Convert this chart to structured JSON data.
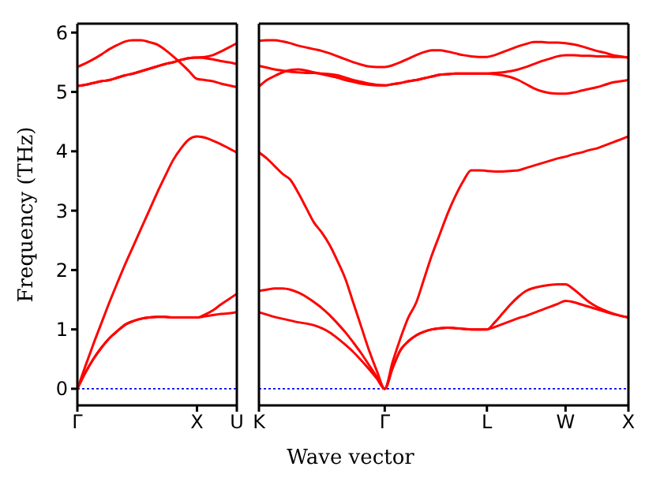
{
  "chart_data": [
    {
      "type": "line",
      "ylabel": "Frequency (THz)",
      "categories": [
        "Γ",
        null,
        null,
        null,
        null,
        null,
        null,
        null,
        null,
        null,
        null,
        null,
        null,
        null,
        null,
        "X",
        null,
        null,
        null,
        null,
        "U"
      ],
      "ylim": [
        -0.28,
        6.15
      ],
      "yticks": [
        0,
        1,
        2,
        3,
        4,
        5,
        6
      ],
      "grid": false,
      "marker": "none",
      "line_style": "solid",
      "ref_lines": [
        {
          "axis": "y",
          "value": 0,
          "color": "#0000ff",
          "line_style": "dotted"
        }
      ],
      "series": [
        {
          "color": "#ff0000",
          "values": [
            0,
            0.27,
            0.5,
            0.69,
            0.85,
            0.97,
            1.08,
            1.14,
            1.18,
            1.2,
            1.21,
            1.21,
            1.2,
            1.2,
            1.2,
            1.2,
            1.22,
            1.24,
            1.26,
            1.27,
            1.29
          ]
        },
        {
          "color": "#ff0000",
          "values": [
            0,
            0.27,
            0.5,
            0.69,
            0.85,
            0.97,
            1.08,
            1.14,
            1.18,
            1.2,
            1.21,
            1.21,
            1.2,
            1.2,
            1.2,
            1.2,
            1.25,
            1.32,
            1.42,
            1.51,
            1.6
          ]
        },
        {
          "color": "#ff0000",
          "values": [
            0,
            0.38,
            0.75,
            1.1,
            1.45,
            1.78,
            2.1,
            2.4,
            2.7,
            3.0,
            3.3,
            3.58,
            3.85,
            4.05,
            4.2,
            4.25,
            4.23,
            4.18,
            4.12,
            4.05,
            3.98
          ]
        },
        {
          "color": "#ff0000",
          "values": [
            5.1,
            5.12,
            5.15,
            5.18,
            5.2,
            5.24,
            5.28,
            5.31,
            5.35,
            5.39,
            5.43,
            5.47,
            5.5,
            5.54,
            5.57,
            5.58,
            5.57,
            5.55,
            5.52,
            5.5,
            5.47
          ]
        },
        {
          "color": "#ff0000",
          "values": [
            5.1,
            5.12,
            5.15,
            5.18,
            5.2,
            5.24,
            5.28,
            5.31,
            5.35,
            5.39,
            5.43,
            5.47,
            5.5,
            5.54,
            5.57,
            5.58,
            5.59,
            5.62,
            5.68,
            5.75,
            5.82
          ]
        },
        {
          "color": "#ff0000",
          "values": [
            5.42,
            5.48,
            5.55,
            5.63,
            5.72,
            5.79,
            5.85,
            5.87,
            5.87,
            5.84,
            5.8,
            5.71,
            5.6,
            5.48,
            5.35,
            5.22,
            5.2,
            5.18,
            5.14,
            5.11,
            5.08
          ]
        }
      ]
    },
    {
      "type": "line",
      "xlabel": "Wave vector",
      "categories": [
        "K",
        null,
        null,
        null,
        null,
        null,
        null,
        null,
        null,
        null,
        null,
        null,
        null,
        null,
        null,
        null,
        "Γ",
        null,
        null,
        null,
        null,
        null,
        null,
        null,
        null,
        null,
        null,
        null,
        null,
        "L",
        null,
        null,
        null,
        null,
        null,
        null,
        null,
        null,
        null,
        "W",
        null,
        null,
        null,
        null,
        null,
        null,
        null,
        "X"
      ],
      "ylim": [
        -0.28,
        6.15
      ],
      "yticks": [
        0,
        1,
        2,
        3,
        4,
        5,
        6
      ],
      "tick_labels": "x",
      "grid": false,
      "marker": "none",
      "line_style": "solid",
      "ref_lines": [
        {
          "axis": "y",
          "value": 0,
          "color": "#0000ff",
          "line_style": "dotted"
        }
      ],
      "series": [
        {
          "color": "#ff0000",
          "values": [
            1.29,
            1.25,
            1.21,
            1.18,
            1.15,
            1.12,
            1.1,
            1.07,
            1.02,
            0.95,
            0.85,
            0.74,
            0.62,
            0.48,
            0.33,
            0.17,
            0,
            0.35,
            0.65,
            0.8,
            0.9,
            0.96,
            1.0,
            1.02,
            1.03,
            1.02,
            1.01,
            1.0,
            1.0,
            1.0,
            1.04,
            1.09,
            1.14,
            1.19,
            1.23,
            1.28,
            1.33,
            1.38,
            1.43,
            1.48,
            1.46,
            1.42,
            1.38,
            1.34,
            1.3,
            1.26,
            1.23,
            1.2
          ]
        },
        {
          "color": "#ff0000",
          "values": [
            1.65,
            1.67,
            1.69,
            1.69,
            1.67,
            1.62,
            1.55,
            1.46,
            1.36,
            1.24,
            1.1,
            0.95,
            0.78,
            0.6,
            0.4,
            0.2,
            0,
            0.35,
            0.65,
            0.8,
            0.9,
            0.96,
            1.0,
            1.02,
            1.03,
            1.02,
            1.01,
            1.0,
            1.0,
            1.0,
            1.12,
            1.27,
            1.42,
            1.55,
            1.65,
            1.7,
            1.73,
            1.75,
            1.76,
            1.76,
            1.68,
            1.57,
            1.46,
            1.38,
            1.32,
            1.27,
            1.23,
            1.2
          ]
        },
        {
          "color": "#ff0000",
          "values": [
            3.98,
            3.88,
            3.75,
            3.62,
            3.52,
            3.3,
            3.05,
            2.8,
            2.63,
            2.42,
            2.15,
            1.85,
            1.45,
            1.05,
            0.65,
            0.3,
            0,
            0.45,
            0.85,
            1.2,
            1.45,
            1.85,
            2.25,
            2.6,
            2.95,
            3.25,
            3.5,
            3.68,
            3.68,
            3.67,
            3.66,
            3.66,
            3.67,
            3.68,
            3.72,
            3.76,
            3.8,
            3.84,
            3.88,
            3.91,
            3.95,
            3.98,
            4.02,
            4.05,
            4.1,
            4.15,
            4.2,
            4.25
          ]
        },
        {
          "color": "#ff0000",
          "values": [
            5.09,
            5.2,
            5.27,
            5.33,
            5.37,
            5.38,
            5.36,
            5.33,
            5.3,
            5.27,
            5.24,
            5.2,
            5.17,
            5.14,
            5.12,
            5.11,
            5.11,
            5.13,
            5.15,
            5.18,
            5.2,
            5.23,
            5.26,
            5.29,
            5.3,
            5.31,
            5.31,
            5.31,
            5.31,
            5.31,
            5.3,
            5.28,
            5.25,
            5.2,
            5.13,
            5.06,
            5.01,
            4.98,
            4.97,
            4.97,
            4.99,
            5.02,
            5.05,
            5.08,
            5.12,
            5.16,
            5.18,
            5.2
          ]
        },
        {
          "color": "#ff0000",
          "values": [
            5.44,
            5.41,
            5.38,
            5.36,
            5.34,
            5.33,
            5.32,
            5.32,
            5.31,
            5.3,
            5.28,
            5.24,
            5.2,
            5.17,
            5.14,
            5.12,
            5.11,
            5.13,
            5.15,
            5.18,
            5.2,
            5.23,
            5.26,
            5.29,
            5.3,
            5.31,
            5.31,
            5.31,
            5.31,
            5.31,
            5.32,
            5.33,
            5.35,
            5.38,
            5.42,
            5.47,
            5.52,
            5.56,
            5.6,
            5.62,
            5.62,
            5.61,
            5.61,
            5.6,
            5.6,
            5.59,
            5.59,
            5.58
          ]
        },
        {
          "color": "#ff0000",
          "values": [
            5.86,
            5.87,
            5.87,
            5.85,
            5.82,
            5.78,
            5.75,
            5.72,
            5.69,
            5.65,
            5.6,
            5.55,
            5.5,
            5.46,
            5.43,
            5.42,
            5.42,
            5.45,
            5.5,
            5.56,
            5.62,
            5.67,
            5.7,
            5.7,
            5.68,
            5.65,
            5.62,
            5.6,
            5.59,
            5.59,
            5.62,
            5.67,
            5.72,
            5.77,
            5.81,
            5.84,
            5.84,
            5.83,
            5.83,
            5.82,
            5.8,
            5.77,
            5.73,
            5.69,
            5.66,
            5.62,
            5.6,
            5.58
          ]
        }
      ]
    }
  ]
}
